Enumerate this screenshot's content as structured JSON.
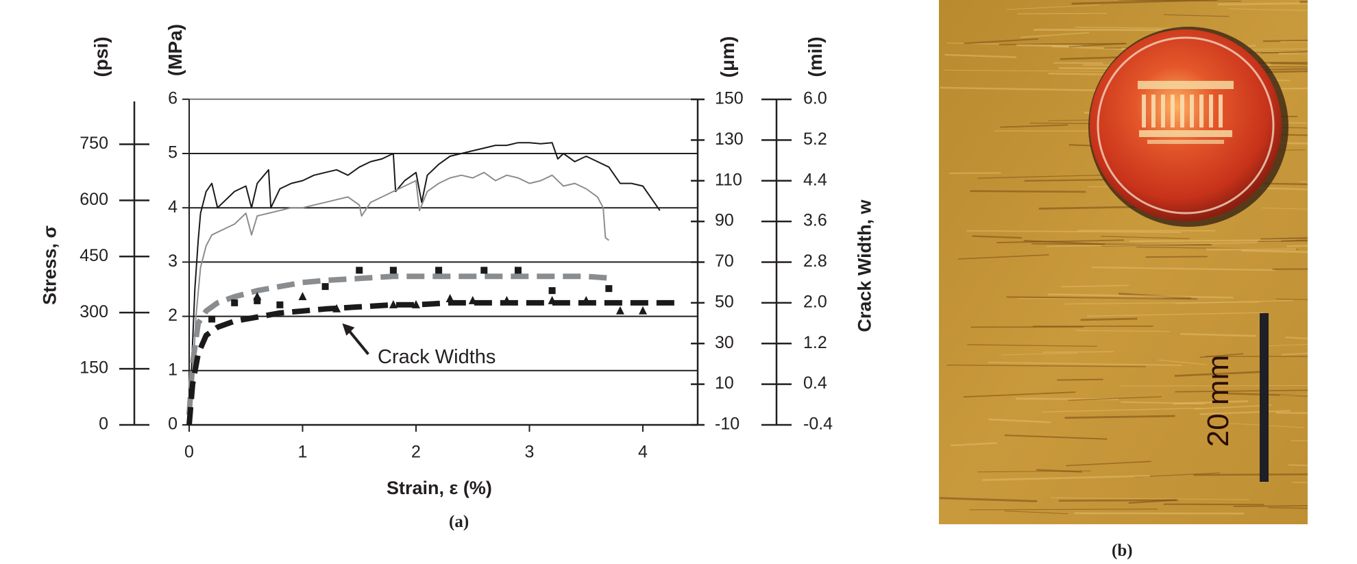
{
  "figure": {
    "panel_a": {
      "caption": "(a)",
      "unit_labels": {
        "psi": "(psi)",
        "mpa": "(MPa)",
        "um": "(μm)",
        "mil": "(mil)"
      },
      "ylabel_left": "Stress, σ",
      "ylabel_right": "Crack Width, w",
      "xlabel": "Strain, ε (%)",
      "annotation": "Crack Widths"
    },
    "panel_b": {
      "caption": "(b)",
      "scale_label": "20 mm",
      "description": "Photograph of specimen surface with tight multiple cracking and a U.S. one-cent coin for scale"
    }
  },
  "chart_data": {
    "type": "line",
    "title": "",
    "xlabel": "Strain, ε (%)",
    "ylabel": "Stress, σ (MPa)",
    "ylabel_secondary": "Stress, σ (psi)",
    "ylabel_right": "Crack Width, w (μm)",
    "ylabel_right_secondary": "Crack Width, w (mil)",
    "xlim": [
      0,
      4.5
    ],
    "ylim": [
      0,
      6
    ],
    "ylim_right": [
      -10,
      150
    ],
    "grid": "horizontal",
    "x_ticks": [
      "0",
      "1",
      "2",
      "3",
      "4"
    ],
    "y_ticks_mpa": [
      "0",
      "1",
      "2",
      "3",
      "4",
      "5",
      "6"
    ],
    "y_ticks_psi": [
      "0",
      "150",
      "300",
      "450",
      "600",
      "750"
    ],
    "y_ticks_um": [
      "-10",
      "10",
      "30",
      "50",
      "70",
      "90",
      "110",
      "130",
      "150"
    ],
    "y_ticks_mil": [
      "-0.4",
      "0.4",
      "1.2",
      "2.0",
      "2.8",
      "3.6",
      "4.4",
      "5.2",
      "6.0"
    ],
    "series": [
      {
        "name": "Stress-strain (specimen 1, black)",
        "axis": "left",
        "style": "solid",
        "color": "#1a1a1a",
        "x": [
          0,
          0.02,
          0.05,
          0.08,
          0.1,
          0.15,
          0.2,
          0.25,
          0.3,
          0.4,
          0.5,
          0.55,
          0.6,
          0.7,
          0.72,
          0.8,
          0.9,
          1.0,
          1.1,
          1.2,
          1.3,
          1.4,
          1.5,
          1.6,
          1.7,
          1.8,
          1.82,
          1.9,
          2.0,
          2.05,
          2.1,
          2.2,
          2.3,
          2.4,
          2.5,
          2.6,
          2.7,
          2.8,
          2.9,
          3.0,
          3.1,
          3.2,
          3.25,
          3.3,
          3.4,
          3.5,
          3.6,
          3.7,
          3.8,
          3.9,
          4.0,
          4.1,
          4.15
        ],
        "y": [
          0,
          1.0,
          2.5,
          3.4,
          3.9,
          4.3,
          4.45,
          4.0,
          4.1,
          4.3,
          4.4,
          4.0,
          4.45,
          4.7,
          4.0,
          4.35,
          4.45,
          4.5,
          4.6,
          4.65,
          4.7,
          4.6,
          4.75,
          4.85,
          4.9,
          5.0,
          4.3,
          4.5,
          4.65,
          4.1,
          4.6,
          4.8,
          4.95,
          5.0,
          5.05,
          5.1,
          5.15,
          5.15,
          5.2,
          5.2,
          5.18,
          5.2,
          4.9,
          5.0,
          4.85,
          4.95,
          4.85,
          4.75,
          4.45,
          4.45,
          4.4,
          4.1,
          3.95
        ]
      },
      {
        "name": "Stress-strain (specimen 2, grey)",
        "axis": "left",
        "style": "solid",
        "color": "#8a8d90",
        "x": [
          0,
          0.03,
          0.06,
          0.1,
          0.15,
          0.2,
          0.3,
          0.4,
          0.5,
          0.55,
          0.6,
          0.7,
          0.8,
          0.9,
          1.0,
          1.1,
          1.2,
          1.3,
          1.4,
          1.5,
          1.52,
          1.6,
          1.7,
          1.8,
          1.9,
          2.0,
          2.03,
          2.1,
          2.2,
          2.3,
          2.4,
          2.5,
          2.6,
          2.7,
          2.8,
          2.9,
          3.0,
          3.1,
          3.2,
          3.3,
          3.4,
          3.5,
          3.6,
          3.65,
          3.67,
          3.7
        ],
        "y": [
          0,
          0.8,
          2.0,
          2.9,
          3.3,
          3.5,
          3.6,
          3.7,
          3.9,
          3.5,
          3.85,
          3.9,
          3.95,
          4.0,
          4.0,
          4.05,
          4.1,
          4.15,
          4.2,
          4.05,
          3.85,
          4.1,
          4.2,
          4.3,
          4.4,
          4.5,
          3.95,
          4.3,
          4.45,
          4.55,
          4.6,
          4.55,
          4.65,
          4.5,
          4.6,
          4.55,
          4.45,
          4.5,
          4.6,
          4.4,
          4.45,
          4.35,
          4.2,
          4.0,
          3.45,
          3.4
        ]
      },
      {
        "name": "Crack width (specimen 2, grey dashed trend)",
        "axis": "right",
        "style": "dashed",
        "color": "#8a8d90",
        "x": [
          0,
          0.03,
          0.08,
          0.15,
          0.25,
          0.4,
          0.6,
          0.8,
          1.0,
          1.2,
          1.5,
          1.8,
          2.0,
          2.5,
          3.0,
          3.5,
          3.75
        ],
        "y": [
          -5,
          20,
          40,
          46,
          50,
          53,
          56,
          58,
          60,
          61,
          62,
          63,
          63,
          63,
          63,
          63,
          62
        ]
      },
      {
        "name": "Crack width (specimen 1, black dashed trend)",
        "axis": "right",
        "style": "dashed",
        "color": "#1a1a1a",
        "x": [
          0,
          0.03,
          0.08,
          0.15,
          0.25,
          0.4,
          0.6,
          0.8,
          1.0,
          1.2,
          1.5,
          1.8,
          2.0,
          2.3,
          2.6,
          3.0,
          3.5,
          4.0,
          4.3
        ],
        "y": [
          -10,
          10,
          25,
          34,
          38,
          41,
          43,
          45,
          46,
          47,
          48,
          49,
          49,
          50,
          50,
          50,
          50,
          50,
          50
        ]
      },
      {
        "name": "Measured crack widths (squares)",
        "axis": "right",
        "style": "marker-square",
        "color": "#1a1a1a",
        "x": [
          0.2,
          0.4,
          0.6,
          0.8,
          1.2,
          1.5,
          1.8,
          2.2,
          2.6,
          2.9,
          3.2,
          3.7
        ],
        "y": [
          42,
          50,
          51,
          49,
          58,
          66,
          66,
          66,
          66,
          66,
          56,
          57
        ]
      },
      {
        "name": "Measured crack widths (triangles)",
        "axis": "right",
        "style": "marker-triangle",
        "color": "#1a1a1a",
        "x": [
          0.6,
          1.0,
          1.3,
          1.8,
          2.0,
          2.3,
          2.5,
          2.8,
          3.2,
          3.5,
          3.8,
          4.0
        ],
        "y": [
          53,
          53,
          47,
          49,
          49,
          52,
          51,
          51,
          51,
          51,
          46,
          46
        ]
      }
    ],
    "annotations": [
      {
        "text": "Crack Widths",
        "arrow_to": {
          "x": 1.35,
          "y_um": 48
        }
      }
    ]
  }
}
